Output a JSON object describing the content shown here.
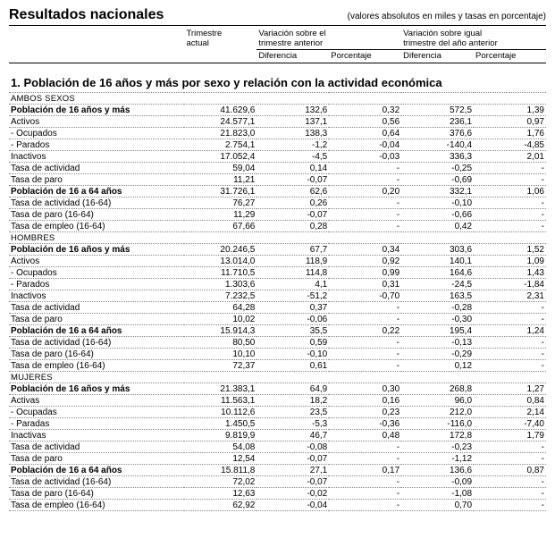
{
  "header": {
    "title": "Resultados nacionales",
    "note": "(valores absolutos en miles y tasas en porcentaje)",
    "col_current_1": "Trimestre",
    "col_current_2": "actual",
    "grp_prev_1": "Variación sobre el",
    "grp_prev_2": "trimestre anterior",
    "grp_year_1": "Variación sobre igual",
    "grp_year_2": "trimestre del año anterior",
    "sub_diff": "Diferencia",
    "sub_pct": "Porcentaje"
  },
  "section1_title": "1. Población de 16 años y más por sexo y relación con la actividad económica",
  "rows": [
    {
      "label": "AMBOS SEXOS",
      "caps": true
    },
    {
      "label": "Población de 16 años y más",
      "bold": true,
      "v": "41.629,6",
      "d1": "132,6",
      "p1": "0,32",
      "d2": "572,5",
      "p2": "1,39"
    },
    {
      "label": "Activos",
      "v": "24.577,1",
      "d1": "137,1",
      "p1": "0,56",
      "d2": "236,1",
      "p2": "0,97"
    },
    {
      "label": "- Ocupados",
      "v": "21.823,0",
      "d1": "138,3",
      "p1": "0,64",
      "d2": "376,6",
      "p2": "1,76"
    },
    {
      "label": "- Parados",
      "v": "2.754,1",
      "d1": "-1,2",
      "p1": "-0,04",
      "d2": "-140,4",
      "p2": "-4,85"
    },
    {
      "label": "Inactivos",
      "v": "17.052,4",
      "d1": "-4,5",
      "p1": "-0,03",
      "d2": "336,3",
      "p2": "2,01"
    },
    {
      "label": "Tasa de actividad",
      "v": "59,04",
      "d1": "0,14",
      "p1": "-",
      "d2": "-0,25",
      "p2": "-"
    },
    {
      "label": "Tasa de paro",
      "v": "11,21",
      "d1": "-0,07",
      "p1": "-",
      "d2": "-0,69",
      "p2": "-"
    },
    {
      "label": "Población de 16 a 64 años",
      "bold": true,
      "v": "31.726,1",
      "d1": "62,6",
      "p1": "0,20",
      "d2": "332,1",
      "p2": "1,06"
    },
    {
      "label": "Tasa de actividad (16-64)",
      "v": "76,27",
      "d1": "0,26",
      "p1": "-",
      "d2": "-0,10",
      "p2": "-"
    },
    {
      "label": "Tasa de paro (16-64)",
      "v": "11,29",
      "d1": "-0,07",
      "p1": "-",
      "d2": "-0,66",
      "p2": "-"
    },
    {
      "label": "Tasa de empleo (16-64)",
      "v": "67,66",
      "d1": "0,28",
      "p1": "-",
      "d2": "0,42",
      "p2": "-"
    },
    {
      "label": "HOMBRES",
      "caps": true
    },
    {
      "label": "Población de 16 años y más",
      "bold": true,
      "v": "20.246,5",
      "d1": "67,7",
      "p1": "0,34",
      "d2": "303,6",
      "p2": "1,52"
    },
    {
      "label": "Activos",
      "v": "13.014,0",
      "d1": "118,9",
      "p1": "0,92",
      "d2": "140,1",
      "p2": "1,09"
    },
    {
      "label": "- Ocupados",
      "v": "11.710,5",
      "d1": "114,8",
      "p1": "0,99",
      "d2": "164,6",
      "p2": "1,43"
    },
    {
      "label": "- Parados",
      "v": "1.303,6",
      "d1": "4,1",
      "p1": "0,31",
      "d2": "-24,5",
      "p2": "-1,84"
    },
    {
      "label": "Inactivos",
      "v": "7.232,5",
      "d1": "-51,2",
      "p1": "-0,70",
      "d2": "163,5",
      "p2": "2,31"
    },
    {
      "label": "Tasa de actividad",
      "v": "64,28",
      "d1": "0,37",
      "p1": "-",
      "d2": "-0,28",
      "p2": "-"
    },
    {
      "label": "Tasa de paro",
      "v": "10,02",
      "d1": "-0,06",
      "p1": "-",
      "d2": "-0,30",
      "p2": "-"
    },
    {
      "label": "Población de 16 a 64 años",
      "bold": true,
      "v": "15.914,3",
      "d1": "35,5",
      "p1": "0,22",
      "d2": "195,4",
      "p2": "1,24"
    },
    {
      "label": "Tasa de actividad (16-64)",
      "v": "80,50",
      "d1": "0,59",
      "p1": "-",
      "d2": "-0,13",
      "p2": "-"
    },
    {
      "label": "Tasa de paro (16-64)",
      "v": "10,10",
      "d1": "-0,10",
      "p1": "-",
      "d2": "-0,29",
      "p2": "-"
    },
    {
      "label": "Tasa de empleo (16-64)",
      "v": "72,37",
      "d1": "0,61",
      "p1": "-",
      "d2": "0,12",
      "p2": "-"
    },
    {
      "label": "MUJERES",
      "caps": true
    },
    {
      "label": "Población de 16 años y más",
      "bold": true,
      "v": "21.383,1",
      "d1": "64,9",
      "p1": "0,30",
      "d2": "268,8",
      "p2": "1,27"
    },
    {
      "label": "Activas",
      "v": "11.563,1",
      "d1": "18,2",
      "p1": "0,16",
      "d2": "96,0",
      "p2": "0,84"
    },
    {
      "label": "- Ocupadas",
      "v": "10.112,6",
      "d1": "23,5",
      "p1": "0,23",
      "d2": "212,0",
      "p2": "2,14"
    },
    {
      "label": "- Paradas",
      "v": "1.450,5",
      "d1": "-5,3",
      "p1": "-0,36",
      "d2": "-116,0",
      "p2": "-7,40"
    },
    {
      "label": "Inactivas",
      "v": "9.819,9",
      "d1": "46,7",
      "p1": "0,48",
      "d2": "172,8",
      "p2": "1,79"
    },
    {
      "label": "Tasa de actividad",
      "v": "54,08",
      "d1": "-0,08",
      "p1": "-",
      "d2": "-0,23",
      "p2": "-"
    },
    {
      "label": "Tasa de paro",
      "v": "12,54",
      "d1": "-0,07",
      "p1": "-",
      "d2": "-1,12",
      "p2": "-"
    },
    {
      "label": "Población de 16 a 64 años",
      "bold": true,
      "v": "15.811,8",
      "d1": "27,1",
      "p1": "0,17",
      "d2": "136,6",
      "p2": "0,87"
    },
    {
      "label": "Tasa de actividad (16-64)",
      "v": "72,02",
      "d1": "-0,07",
      "p1": "-",
      "d2": "-0,09",
      "p2": "-"
    },
    {
      "label": "Tasa de paro (16-64)",
      "v": "12,63",
      "d1": "-0,02",
      "p1": "-",
      "d2": "-1,08",
      "p2": "-"
    },
    {
      "label": "Tasa de empleo (16-64)",
      "v": "62,92",
      "d1": "-0,04",
      "p1": "-",
      "d2": "0,70",
      "p2": "-"
    }
  ]
}
